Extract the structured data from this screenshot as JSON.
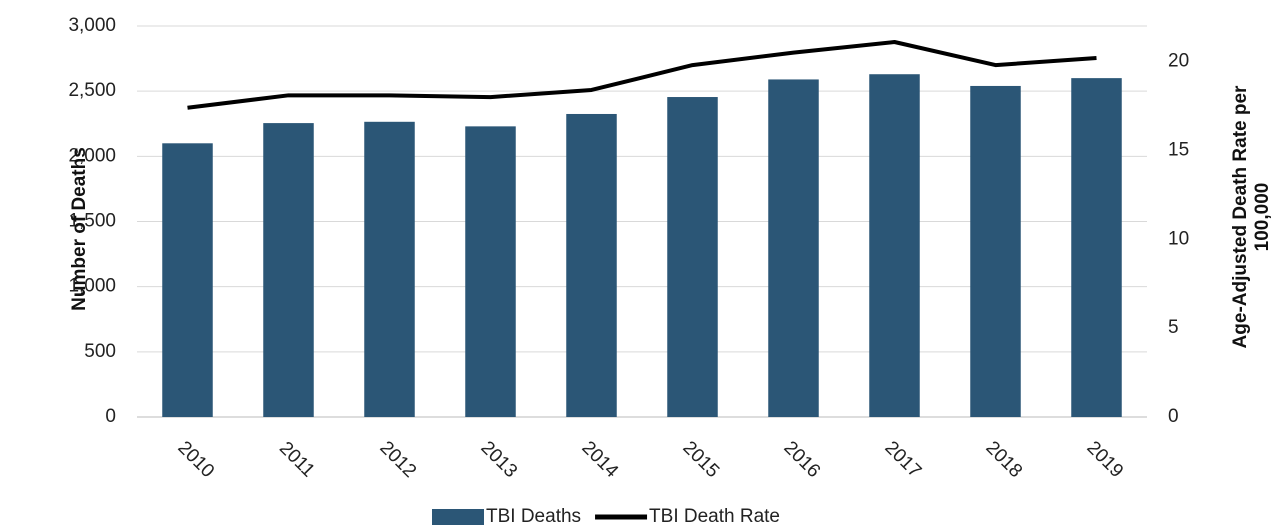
{
  "chart_data": {
    "type": "bar_line",
    "categories": [
      "2010",
      "2011",
      "2012",
      "2013",
      "2014",
      "2015",
      "2016",
      "2017",
      "2018",
      "2019"
    ],
    "series": [
      {
        "name": "TBI Deaths",
        "color": "#2b5676",
        "type": "bar",
        "values": [
          2100,
          2255,
          2265,
          2230,
          2325,
          2455,
          2590,
          2630,
          2540,
          2600
        ]
      },
      {
        "name": "TBI Death Rate",
        "color": "#000000",
        "type": "line",
        "axis": "y2",
        "values": [
          17.4,
          18.1,
          18.1,
          18.0,
          18.4,
          19.8,
          20.5,
          21.1,
          19.8,
          20.2
        ]
      }
    ],
    "ylabel": "Number of Deaths",
    "y2label": "Age-Adjusted Death Rate per 100,000",
    "ylim": [
      0,
      3000
    ],
    "yticks": [
      0,
      500,
      {
        "value": 1000,
        "label": "1,000"
      },
      {
        "value": 1500,
        "label": "1,500"
      },
      {
        "value": 2000,
        "label": "2,000"
      },
      {
        "value": 2500,
        "label": "2,500"
      },
      {
        "value": 3000,
        "label": "3,000"
      }
    ],
    "y2lim": [
      0,
      22
    ],
    "y2ticks": [
      0,
      5,
      10,
      15,
      20
    ],
    "grid": true,
    "legend": "bottom"
  }
}
